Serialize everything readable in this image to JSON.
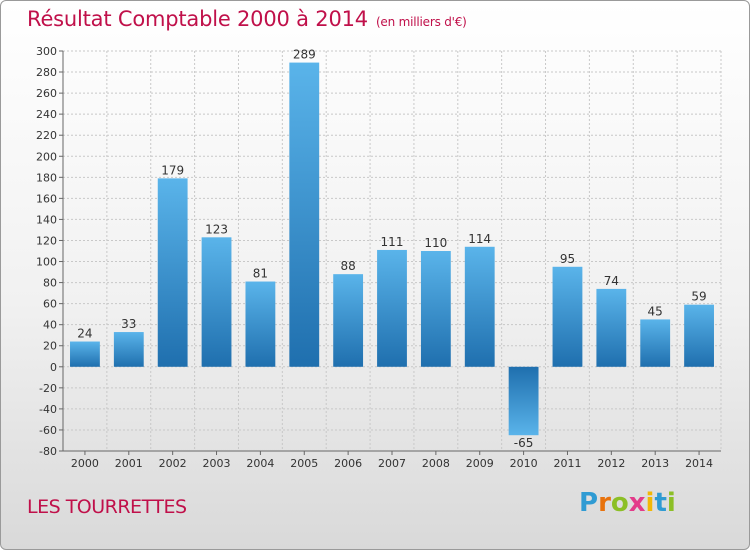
{
  "header": {
    "title": "Résultat Comptable 2000 à 2014",
    "subtitle": "(en milliers d'€)"
  },
  "footer": {
    "place": "LES TOURRETTES",
    "brand": "Proxiti",
    "brand_letters": [
      {
        "ch": "P",
        "color": "#2f9bd3"
      },
      {
        "ch": "r",
        "color": "#e8720c"
      },
      {
        "ch": "o",
        "color": "#8cbf26"
      },
      {
        "ch": "x",
        "color": "#e33b8a"
      },
      {
        "ch": "i",
        "color": "#f2b705"
      },
      {
        "ch": "t",
        "color": "#2f9bd3"
      },
      {
        "ch": "i",
        "color": "#8cbf26"
      }
    ]
  },
  "colors": {
    "accent": "#c0104a",
    "bar_light": "#5ab4ea",
    "bar_dark": "#1f6fae",
    "grid": "#c8c8c8",
    "text": "#333333"
  },
  "chart_data": {
    "type": "bar",
    "title": "Résultat Comptable 2000 à 2014",
    "ylabel": "",
    "xlabel": "",
    "categories": [
      "2000",
      "2001",
      "2002",
      "2003",
      "2004",
      "2005",
      "2006",
      "2007",
      "2008",
      "2009",
      "2010",
      "2011",
      "2012",
      "2013",
      "2014"
    ],
    "values": [
      24,
      33,
      179,
      123,
      81,
      289,
      88,
      111,
      110,
      114,
      -65,
      95,
      74,
      45,
      59
    ],
    "ylim": [
      -80,
      300
    ],
    "yticks": [
      -80,
      -60,
      -40,
      -20,
      0,
      20,
      40,
      60,
      80,
      100,
      120,
      140,
      160,
      180,
      200,
      220,
      240,
      260,
      280,
      300
    ],
    "grid": true,
    "legend": "none"
  }
}
